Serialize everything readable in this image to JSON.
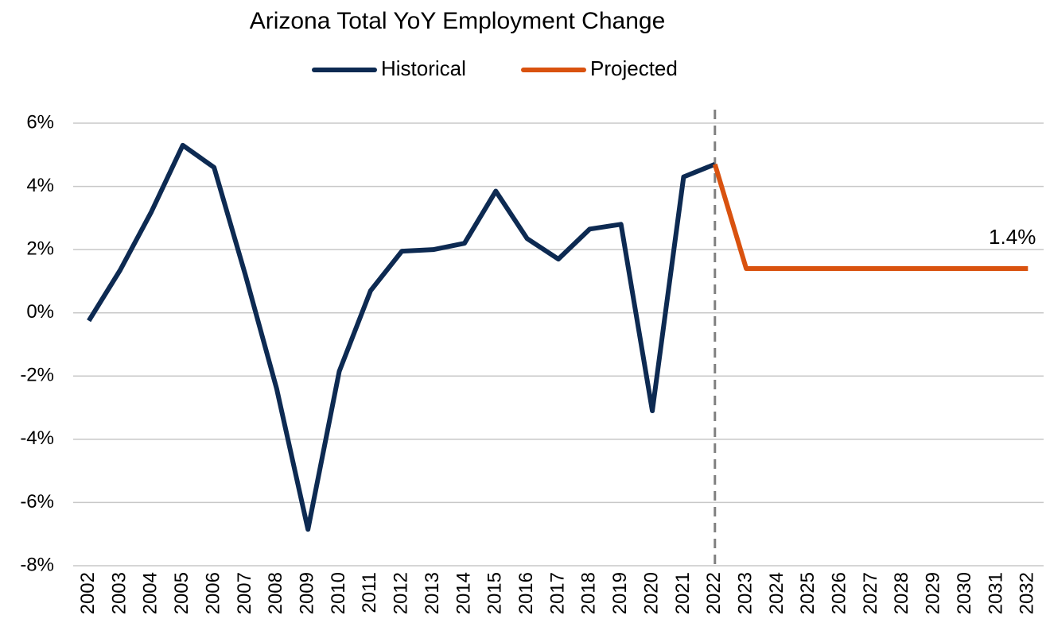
{
  "chart_data": {
    "type": "line",
    "title": "Arizona Total YoY Employment  Change",
    "categories": [
      "2002",
      "2003",
      "2004",
      "2005",
      "2006",
      "2007",
      "2008",
      "2009",
      "2010",
      "2011",
      "2012",
      "2013",
      "2014",
      "2015",
      "2016",
      "2017",
      "2018",
      "2019",
      "2020",
      "2021",
      "2022",
      "2023",
      "2024",
      "2025",
      "2026",
      "2027",
      "2028",
      "2029",
      "2030",
      "2031",
      "2032"
    ],
    "series": [
      {
        "name": "Historical",
        "color": "#0d2a52",
        "values": [
          -0.25,
          1.35,
          3.2,
          5.3,
          4.6,
          1.2,
          -2.4,
          -6.85,
          -1.85,
          0.7,
          1.95,
          2.0,
          2.2,
          3.85,
          2.35,
          1.7,
          2.65,
          2.8,
          -3.1,
          4.3,
          4.7,
          null,
          null,
          null,
          null,
          null,
          null,
          null,
          null,
          null,
          null
        ]
      },
      {
        "name": "Projected",
        "color": "#d9520f",
        "values": [
          null,
          null,
          null,
          null,
          null,
          null,
          null,
          null,
          null,
          null,
          null,
          null,
          null,
          null,
          null,
          null,
          null,
          null,
          null,
          null,
          4.7,
          1.4,
          1.4,
          1.4,
          1.4,
          1.4,
          1.4,
          1.4,
          1.4,
          1.4,
          1.4
        ],
        "value_labels": [
          null,
          null,
          null,
          null,
          null,
          null,
          null,
          null,
          null,
          null,
          null,
          null,
          null,
          null,
          null,
          null,
          null,
          null,
          null,
          null,
          null,
          null,
          null,
          null,
          null,
          null,
          null,
          null,
          null,
          null,
          "1.4%"
        ]
      }
    ],
    "ylim": [
      -8,
      6
    ],
    "yticks": [
      {
        "value": -8,
        "label": "-8%"
      },
      {
        "value": -6,
        "label": "-6%"
      },
      {
        "value": -4,
        "label": "-4%"
      },
      {
        "value": -2,
        "label": "-2%"
      },
      {
        "value": 0,
        "label": "0%"
      },
      {
        "value": 2,
        "label": "2%"
      },
      {
        "value": 4,
        "label": "4%"
      },
      {
        "value": 6,
        "label": "6%"
      }
    ],
    "grid": true,
    "legend": "top"
  }
}
